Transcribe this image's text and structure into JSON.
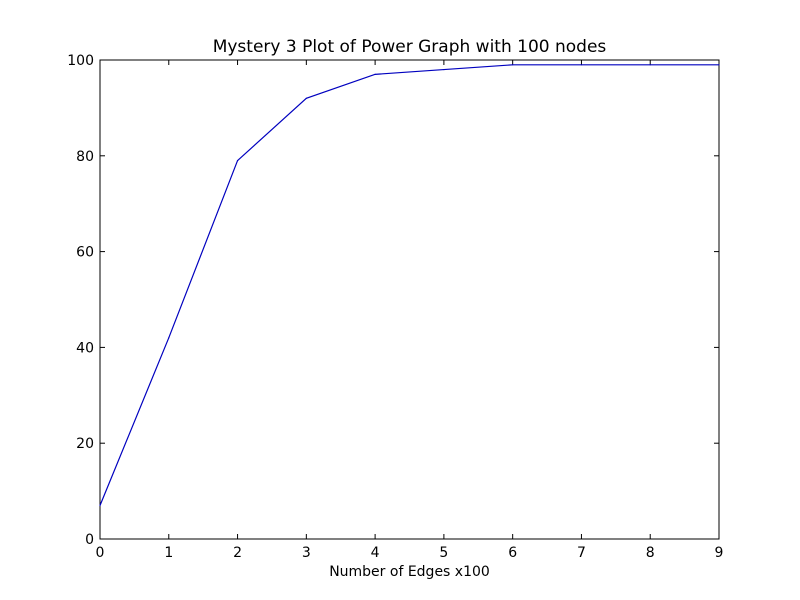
{
  "chart_data": {
    "type": "line",
    "title": "Mystery 3 Plot of Power Graph with 100 nodes",
    "xlabel": "Number of Edges x100",
    "ylabel": "",
    "xlim": [
      0,
      9
    ],
    "ylim": [
      0,
      100
    ],
    "xticks": [
      0,
      1,
      2,
      3,
      4,
      5,
      6,
      7,
      8,
      9
    ],
    "yticks": [
      0,
      20,
      40,
      60,
      80,
      100
    ],
    "grid": false,
    "series": [
      {
        "color": "#0000bf",
        "x": [
          0,
          1,
          2,
          3,
          4,
          5,
          6,
          7,
          8,
          9
        ],
        "y": [
          7,
          42,
          79,
          92,
          97,
          98,
          99,
          99,
          99,
          99
        ]
      }
    ]
  }
}
